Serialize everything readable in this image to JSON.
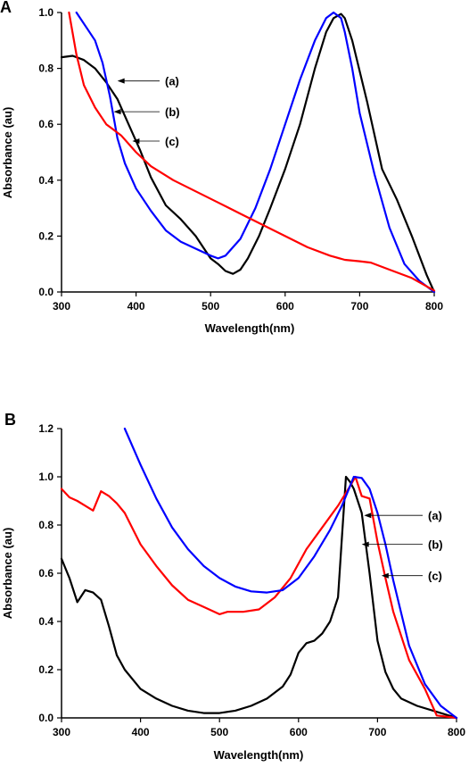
{
  "chart_data": [
    {
      "panel": "A",
      "type": "line",
      "xlabel": "Wavelength(nm)",
      "ylabel": "Absorbance (au)",
      "xlim": [
        300,
        800
      ],
      "ylim": [
        0.0,
        1.0
      ],
      "xticks": [
        300,
        400,
        500,
        600,
        700,
        800
      ],
      "yticks": [
        0.0,
        0.2,
        0.4,
        0.6,
        0.8,
        1.0
      ],
      "grid": false,
      "series": [
        {
          "name": "(a)",
          "color": "#000000",
          "x": [
            300,
            315,
            330,
            345,
            360,
            375,
            390,
            405,
            420,
            440,
            460,
            480,
            490,
            500,
            510,
            520,
            530,
            540,
            550,
            565,
            580,
            600,
            620,
            640,
            655,
            665,
            675,
            680,
            690,
            710,
            730,
            750,
            770,
            790,
            800
          ],
          "y": [
            0.84,
            0.845,
            0.83,
            0.8,
            0.75,
            0.69,
            0.6,
            0.51,
            0.41,
            0.31,
            0.26,
            0.2,
            0.16,
            0.12,
            0.1,
            0.075,
            0.065,
            0.08,
            0.12,
            0.2,
            0.3,
            0.44,
            0.6,
            0.8,
            0.93,
            0.98,
            0.995,
            0.98,
            0.9,
            0.68,
            0.44,
            0.33,
            0.2,
            0.06,
            0.0
          ]
        },
        {
          "name": "(b)",
          "color": "#0000ff",
          "x": [
            320,
            335,
            345,
            355,
            365,
            375,
            385,
            400,
            420,
            440,
            460,
            480,
            500,
            510,
            520,
            540,
            560,
            580,
            600,
            620,
            640,
            655,
            665,
            675,
            680,
            690,
            700,
            720,
            740,
            760,
            780,
            800
          ],
          "y": [
            1.0,
            0.94,
            0.9,
            0.82,
            0.7,
            0.55,
            0.46,
            0.37,
            0.29,
            0.22,
            0.18,
            0.155,
            0.13,
            0.12,
            0.13,
            0.19,
            0.3,
            0.44,
            0.6,
            0.76,
            0.9,
            0.98,
            1.0,
            0.98,
            0.93,
            0.8,
            0.64,
            0.42,
            0.23,
            0.1,
            0.04,
            0.0
          ]
        },
        {
          "name": "(c)",
          "color": "#ff0000",
          "x": [
            310,
            320,
            330,
            345,
            360,
            380,
            400,
            420,
            450,
            480,
            510,
            540,
            570,
            600,
            630,
            660,
            680,
            700,
            715,
            740,
            770,
            800
          ],
          "y": [
            1.0,
            0.85,
            0.74,
            0.66,
            0.6,
            0.56,
            0.5,
            0.45,
            0.4,
            0.36,
            0.32,
            0.28,
            0.24,
            0.2,
            0.16,
            0.13,
            0.115,
            0.11,
            0.105,
            0.08,
            0.05,
            0.005
          ]
        }
      ],
      "annotations": [
        {
          "label": "(a)",
          "x": 375,
          "y": 0.755
        },
        {
          "label": "(b)",
          "x": 370,
          "y": 0.645
        },
        {
          "label": "(c)",
          "x": 395,
          "y": 0.54
        }
      ]
    },
    {
      "panel": "B",
      "type": "line",
      "xlabel": "Wavelength(nm)",
      "ylabel": "Absorbance (au)",
      "xlim": [
        300,
        800
      ],
      "ylim": [
        0.0,
        1.2
      ],
      "xticks": [
        300,
        400,
        500,
        600,
        700,
        800
      ],
      "yticks": [
        0.0,
        0.2,
        0.4,
        0.6,
        0.8,
        1.0,
        1.2
      ],
      "grid": false,
      "series": [
        {
          "name": "(a)",
          "color": "#000000",
          "x": [
            300,
            310,
            320,
            330,
            340,
            350,
            360,
            370,
            380,
            400,
            420,
            440,
            460,
            480,
            500,
            520,
            540,
            560,
            580,
            590,
            600,
            610,
            620,
            630,
            640,
            650,
            655,
            660,
            665,
            670,
            680,
            690,
            700,
            710,
            720,
            730,
            750,
            780,
            800
          ],
          "y": [
            0.66,
            0.58,
            0.48,
            0.53,
            0.52,
            0.49,
            0.38,
            0.26,
            0.2,
            0.12,
            0.08,
            0.05,
            0.03,
            0.02,
            0.02,
            0.03,
            0.05,
            0.08,
            0.13,
            0.18,
            0.27,
            0.31,
            0.32,
            0.35,
            0.4,
            0.5,
            0.75,
            1.0,
            0.98,
            0.95,
            0.85,
            0.6,
            0.32,
            0.19,
            0.12,
            0.08,
            0.05,
            0.02,
            0.0
          ]
        },
        {
          "name": "(b)",
          "color": "#ff0000",
          "x": [
            300,
            310,
            320,
            330,
            340,
            350,
            360,
            370,
            380,
            400,
            420,
            440,
            460,
            480,
            500,
            510,
            530,
            550,
            570,
            590,
            610,
            630,
            650,
            665,
            672,
            680,
            690,
            700,
            710,
            720,
            740,
            760,
            775,
            800
          ],
          "y": [
            0.95,
            0.915,
            0.9,
            0.88,
            0.86,
            0.94,
            0.92,
            0.89,
            0.85,
            0.72,
            0.63,
            0.55,
            0.49,
            0.46,
            0.43,
            0.44,
            0.44,
            0.45,
            0.5,
            0.58,
            0.7,
            0.79,
            0.88,
            0.96,
            1.0,
            0.92,
            0.91,
            0.73,
            0.58,
            0.44,
            0.24,
            0.12,
            0.01,
            0.0
          ]
        },
        {
          "name": "(c)",
          "color": "#0000ff",
          "x": [
            380,
            400,
            420,
            440,
            460,
            480,
            500,
            520,
            540,
            560,
            580,
            600,
            620,
            640,
            655,
            665,
            670,
            680,
            690,
            700,
            710,
            720,
            740,
            760,
            780,
            800
          ],
          "y": [
            1.2,
            1.05,
            0.91,
            0.79,
            0.7,
            0.63,
            0.58,
            0.545,
            0.525,
            0.52,
            0.53,
            0.58,
            0.67,
            0.78,
            0.88,
            0.96,
            1.0,
            0.995,
            0.95,
            0.85,
            0.72,
            0.57,
            0.3,
            0.14,
            0.05,
            0.0
          ]
        }
      ],
      "annotations": [
        {
          "label": "(a)",
          "x": 683,
          "y": 0.84
        },
        {
          "label": "(b)",
          "x": 680,
          "y": 0.72
        },
        {
          "label": "(c)",
          "x": 705,
          "y": 0.59
        }
      ]
    }
  ]
}
